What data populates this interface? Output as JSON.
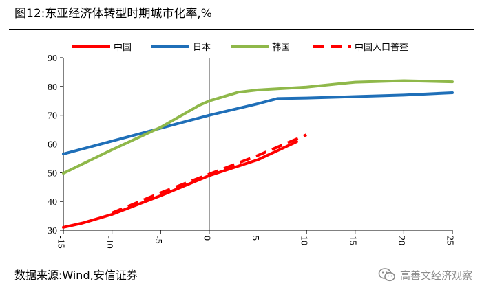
{
  "header": {
    "title": "图12:东亚经济体转型时期城市化率,%"
  },
  "footer": {
    "source": "数据来源:Wind,安信证券",
    "watermark": "高善文经济观察",
    "watermark_icon": "wechat-icon"
  },
  "chart_data": {
    "type": "line",
    "title": "图12:东亚经济体转型时期城市化率,%",
    "xlabel": "",
    "ylabel": "",
    "xlim": [
      -15,
      25
    ],
    "ylim": [
      30,
      90
    ],
    "x_ticks": [
      -15,
      -10,
      -5,
      0,
      5,
      10,
      15,
      20,
      25
    ],
    "y_ticks": [
      30,
      40,
      50,
      60,
      70,
      80,
      90
    ],
    "grid": false,
    "legend_position": "top",
    "series": [
      {
        "name": "中国",
        "color": "#ff0000",
        "dash": "solid",
        "points": [
          [
            -15,
            31
          ],
          [
            -13,
            32.5
          ],
          [
            -10,
            35.5
          ],
          [
            -5,
            42
          ],
          [
            0,
            49
          ],
          [
            5,
            54.5
          ],
          [
            9,
            60.8
          ]
        ]
      },
      {
        "name": "日本",
        "color": "#1f6fb8",
        "dash": "solid",
        "points": [
          [
            -15,
            56.5
          ],
          [
            -10,
            61
          ],
          [
            -5,
            65.5
          ],
          [
            0,
            70
          ],
          [
            5,
            74
          ],
          [
            7,
            75.8
          ],
          [
            10,
            76
          ],
          [
            15,
            76.5
          ],
          [
            20,
            77
          ],
          [
            25,
            77.8
          ]
        ]
      },
      {
        "name": "韩国",
        "color": "#8fb84a",
        "dash": "solid",
        "points": [
          [
            -15,
            49.8
          ],
          [
            -10,
            58
          ],
          [
            -5,
            65.8
          ],
          [
            -1,
            73.5
          ],
          [
            0,
            75
          ],
          [
            3,
            78
          ],
          [
            5,
            78.8
          ],
          [
            10,
            79.8
          ],
          [
            15,
            81.5
          ],
          [
            20,
            82
          ],
          [
            25,
            81.6
          ]
        ]
      },
      {
        "name": "中国人口普查",
        "color": "#ff0000",
        "dash": "dashed",
        "points": [
          [
            -10,
            36
          ],
          [
            -5,
            43
          ],
          [
            0,
            49.5
          ],
          [
            5,
            56
          ],
          [
            10,
            63.2
          ]
        ]
      }
    ]
  }
}
